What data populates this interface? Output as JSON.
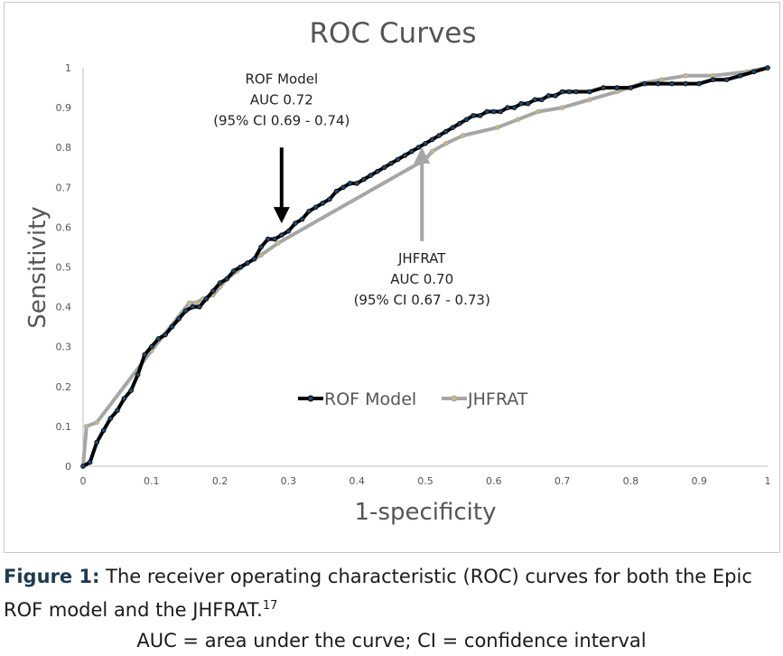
{
  "chart_data": {
    "type": "line",
    "title": "ROC Curves",
    "xlabel": "1-specificity",
    "ylabel": "Sensitivity",
    "xlim": [
      0,
      1
    ],
    "ylim": [
      0,
      1
    ],
    "xticks": [
      "0",
      "0.1",
      "0.2",
      "0.3",
      "0.4",
      "0.5",
      "0.6",
      "0.7",
      "0.8",
      "0.9",
      "1"
    ],
    "yticks": [
      "0",
      "0.1",
      "0.2",
      "0.3",
      "0.4",
      "0.5",
      "0.6",
      "0.7",
      "0.8",
      "0.9",
      "1"
    ],
    "grid": false,
    "legend": "center",
    "series": [
      {
        "name": "ROF Model",
        "color": "#000000",
        "marker_color": "#1d4a6e",
        "x": [
          0,
          0.01,
          0.02,
          0.03,
          0.04,
          0.05,
          0.06,
          0.07,
          0.08,
          0.09,
          0.1,
          0.11,
          0.12,
          0.13,
          0.14,
          0.15,
          0.16,
          0.17,
          0.18,
          0.19,
          0.2,
          0.21,
          0.22,
          0.23,
          0.24,
          0.25,
          0.26,
          0.27,
          0.28,
          0.29,
          0.3,
          0.31,
          0.32,
          0.33,
          0.34,
          0.35,
          0.36,
          0.37,
          0.38,
          0.39,
          0.4,
          0.41,
          0.42,
          0.43,
          0.44,
          0.45,
          0.46,
          0.47,
          0.48,
          0.49,
          0.5,
          0.51,
          0.52,
          0.53,
          0.54,
          0.55,
          0.56,
          0.57,
          0.58,
          0.59,
          0.6,
          0.61,
          0.62,
          0.63,
          0.64,
          0.65,
          0.66,
          0.67,
          0.68,
          0.69,
          0.7,
          0.71,
          0.72,
          0.74,
          0.76,
          0.78,
          0.8,
          0.82,
          0.84,
          0.86,
          0.88,
          0.9,
          0.92,
          0.94,
          0.96,
          0.98,
          1
        ],
        "y": [
          0,
          0.01,
          0.06,
          0.09,
          0.12,
          0.14,
          0.17,
          0.19,
          0.23,
          0.28,
          0.3,
          0.32,
          0.33,
          0.35,
          0.37,
          0.39,
          0.4,
          0.4,
          0.42,
          0.44,
          0.46,
          0.47,
          0.49,
          0.5,
          0.51,
          0.52,
          0.55,
          0.57,
          0.57,
          0.58,
          0.59,
          0.61,
          0.62,
          0.64,
          0.65,
          0.66,
          0.67,
          0.69,
          0.7,
          0.71,
          0.71,
          0.72,
          0.73,
          0.74,
          0.75,
          0.76,
          0.77,
          0.78,
          0.79,
          0.8,
          0.81,
          0.82,
          0.83,
          0.84,
          0.85,
          0.86,
          0.87,
          0.88,
          0.88,
          0.89,
          0.89,
          0.89,
          0.9,
          0.9,
          0.91,
          0.91,
          0.92,
          0.92,
          0.93,
          0.93,
          0.94,
          0.94,
          0.94,
          0.94,
          0.95,
          0.95,
          0.95,
          0.96,
          0.96,
          0.96,
          0.96,
          0.96,
          0.97,
          0.97,
          0.98,
          0.99,
          1.0
        ]
      },
      {
        "name": "JHFRAT",
        "color": "#a6a6a6",
        "marker_color": "#c9b87a",
        "x": [
          0,
          0.005,
          0.02,
          0.1,
          0.155,
          0.165,
          0.175,
          0.19,
          0.2,
          0.21,
          0.225,
          0.24,
          0.26,
          0.285,
          0.5,
          0.51,
          0.53,
          0.555,
          0.605,
          0.635,
          0.665,
          0.7,
          0.74,
          0.78,
          0.815,
          0.845,
          0.88,
          0.92,
          0.97,
          1.0
        ],
        "y": [
          0,
          0.1,
          0.11,
          0.29,
          0.41,
          0.41,
          0.42,
          0.43,
          0.45,
          0.47,
          0.49,
          0.51,
          0.53,
          0.56,
          0.77,
          0.79,
          0.81,
          0.83,
          0.85,
          0.87,
          0.89,
          0.9,
          0.92,
          0.94,
          0.96,
          0.97,
          0.98,
          0.98,
          0.99,
          1.0
        ]
      }
    ],
    "annotations": [
      {
        "lines": [
          "ROF Model",
          "AUC  0.72",
          "(95% CI 0.69 - 0.74)"
        ],
        "x": 0.29,
        "y": 0.96,
        "arrow_from": [
          0.29,
          0.8
        ],
        "arrow_to": [
          0.29,
          0.63
        ],
        "arrow_color": "#000000"
      },
      {
        "lines": [
          "JHFRAT",
          "AUC 0.70",
          "(95% CI 0.67 - 0.73)"
        ],
        "x": 0.495,
        "y": 0.51,
        "arrow_from": [
          0.495,
          0.565
        ],
        "arrow_to": [
          0.495,
          0.78
        ],
        "arrow_color": "#a6a6a6"
      }
    ]
  },
  "caption": {
    "label": "Figure 1:",
    "text": " The receiver operating characteristic (ROC) curves for both the Epic ROF model and the JHFRAT.",
    "ref": "17",
    "note": "AUC = area under the curve; CI = confidence interval"
  }
}
